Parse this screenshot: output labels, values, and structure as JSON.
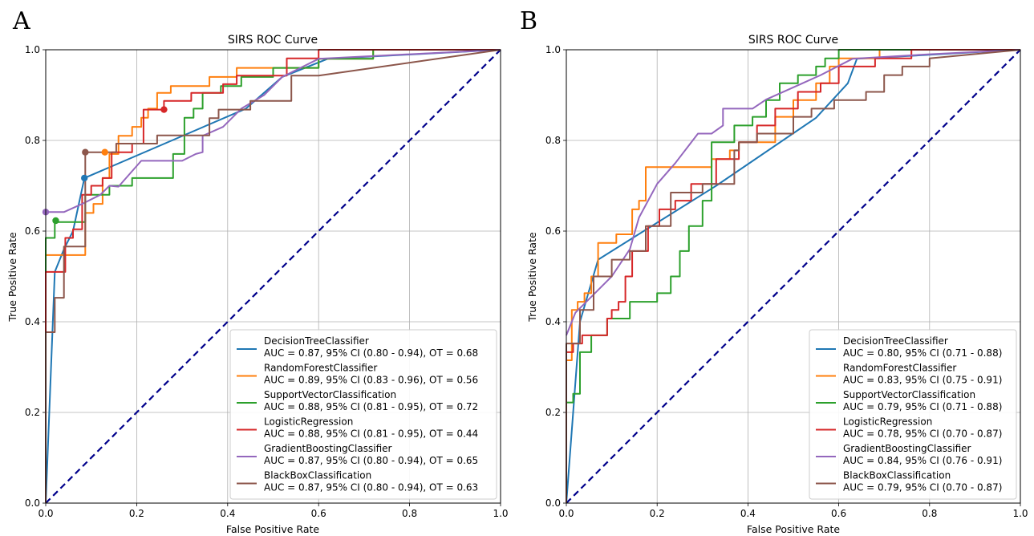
{
  "charts": [
    {
      "panel_label": "A",
      "title": "SIRS ROC Curve",
      "xlabel": "False Positive Rate",
      "ylabel": "True Positive Rate"
    },
    {
      "panel_label": "B",
      "title": "SIRS ROC Curve",
      "xlabel": "False Positive Rate",
      "ylabel": "True Positive Rate"
    }
  ],
  "chart_data": [
    {
      "type": "line",
      "panel": "A",
      "title": "SIRS ROC Curve",
      "xlabel": "False Positive Rate",
      "ylabel": "True Positive Rate",
      "xlim": [
        0,
        1
      ],
      "ylim": [
        0,
        1
      ],
      "xticks": [
        "0.0",
        "0.2",
        "0.4",
        "0.6",
        "0.8",
        "1.0"
      ],
      "yticks": [
        "0.0",
        "0.2",
        "0.4",
        "0.6",
        "0.8",
        "1.0"
      ],
      "grid": true,
      "legend_position": "bottom-right",
      "diagonal": {
        "x": [
          0,
          1
        ],
        "y": [
          0,
          1
        ],
        "color": "#00008b"
      },
      "series": [
        {
          "name": "DecisionTreeClassifier",
          "color": "#1f77b4",
          "stats": "AUC = 0.87, 95% CI (0.80 - 0.94), OT = 0.68",
          "x": [
            0,
            0.02,
            0.04,
            0.06,
            0.085,
            0.44,
            0.52,
            0.62,
            1.0
          ],
          "y": [
            0,
            0.51,
            0.56,
            0.6,
            0.717,
            0.87,
            0.94,
            0.98,
            1.0
          ],
          "marker": {
            "x": 0.085,
            "y": 0.717
          }
        },
        {
          "name": "RandomForestClassifier",
          "color": "#ff7f0e",
          "stats": "AUC = 0.89, 95% CI (0.83 - 0.96), OT = 0.56",
          "x": [
            0,
            0,
            0.087,
            0.087,
            0.105,
            0.105,
            0.125,
            0.125,
            0.14,
            0.14,
            0.16,
            0.16,
            0.19,
            0.19,
            0.21,
            0.21,
            0.225,
            0.225,
            0.245,
            0.245,
            0.275,
            0.275,
            0.36,
            0.36,
            0.42,
            0.42,
            0.6,
            0.6,
            0.72,
            0.72,
            1.0
          ],
          "y": [
            0,
            0.547,
            0.547,
            0.64,
            0.64,
            0.66,
            0.66,
            0.717,
            0.717,
            0.77,
            0.77,
            0.81,
            0.81,
            0.83,
            0.83,
            0.85,
            0.85,
            0.87,
            0.87,
            0.905,
            0.905,
            0.92,
            0.92,
            0.94,
            0.94,
            0.96,
            0.96,
            0.98,
            0.98,
            1.0,
            1.0
          ],
          "marker": {
            "x": 0.13,
            "y": 0.774
          }
        },
        {
          "name": "SupportVectorClassification",
          "color": "#2ca02c",
          "stats": "AUC = 0.88, 95% CI (0.81 - 0.95), OT = 0.72",
          "x": [
            0,
            0,
            0.02,
            0.02,
            0.087,
            0.087,
            0.14,
            0.14,
            0.19,
            0.19,
            0.28,
            0.28,
            0.305,
            0.305,
            0.325,
            0.325,
            0.345,
            0.345,
            0.385,
            0.385,
            0.43,
            0.43,
            0.5,
            0.5,
            0.6,
            0.6,
            0.72,
            0.72,
            1.0
          ],
          "y": [
            0,
            0.585,
            0.585,
            0.62,
            0.62,
            0.68,
            0.68,
            0.7,
            0.7,
            0.717,
            0.717,
            0.77,
            0.77,
            0.85,
            0.85,
            0.87,
            0.87,
            0.905,
            0.905,
            0.92,
            0.92,
            0.94,
            0.94,
            0.96,
            0.96,
            0.98,
            0.98,
            1.0,
            1.0
          ],
          "marker": {
            "x": 0.022,
            "y": 0.623
          }
        },
        {
          "name": "LogisticRegression",
          "color": "#d62728",
          "stats": "AUC = 0.88, 95% CI (0.81 - 0.95), OT = 0.44",
          "x": [
            0,
            0,
            0.043,
            0.043,
            0.06,
            0.06,
            0.08,
            0.08,
            0.1,
            0.1,
            0.125,
            0.125,
            0.145,
            0.145,
            0.19,
            0.19,
            0.215,
            0.215,
            0.26,
            0.26,
            0.32,
            0.32,
            0.39,
            0.39,
            0.42,
            0.42,
            0.53,
            0.53,
            0.6,
            0.6,
            1.0
          ],
          "y": [
            0,
            0.51,
            0.51,
            0.585,
            0.585,
            0.604,
            0.604,
            0.68,
            0.68,
            0.7,
            0.7,
            0.717,
            0.717,
            0.774,
            0.774,
            0.793,
            0.793,
            0.868,
            0.868,
            0.887,
            0.887,
            0.905,
            0.905,
            0.924,
            0.924,
            0.943,
            0.943,
            0.981,
            0.981,
            1.0,
            1.0
          ],
          "marker": {
            "x": 0.26,
            "y": 0.868
          }
        },
        {
          "name": "GradientBoostingClassifier",
          "color": "#9467bd",
          "stats": "AUC = 0.87, 95% CI (0.80 - 0.94), OT = 0.65",
          "x": [
            0,
            0.04,
            0.08,
            0.12,
            0.14,
            0.16,
            0.21,
            0.3,
            0.33,
            0.345,
            0.345,
            0.39,
            0.43,
            0.48,
            0.52,
            0.6,
            0.8,
            1.0
          ],
          "y": [
            0.642,
            0.642,
            0.66,
            0.68,
            0.7,
            0.698,
            0.755,
            0.755,
            0.77,
            0.774,
            0.81,
            0.83,
            0.87,
            0.9,
            0.94,
            0.98,
            0.99,
            1.0
          ],
          "marker": {
            "x": 0,
            "y": 0.642
          }
        },
        {
          "name": "BlackBoxClassification",
          "color": "#8c564b",
          "stats": "AUC = 0.87, 95% CI (0.80 - 0.94), OT = 0.63",
          "x": [
            0,
            0,
            0.02,
            0.02,
            0.04,
            0.04,
            0.087,
            0.087,
            0.155,
            0.155,
            0.245,
            0.245,
            0.36,
            0.36,
            0.38,
            0.38,
            0.45,
            0.45,
            0.54,
            0.54,
            0.6,
            0.6,
            1.0
          ],
          "y": [
            0,
            0.377,
            0.377,
            0.453,
            0.453,
            0.566,
            0.566,
            0.774,
            0.774,
            0.793,
            0.793,
            0.811,
            0.811,
            0.849,
            0.849,
            0.868,
            0.868,
            0.887,
            0.887,
            0.943,
            0.943,
            0.943,
            1.0
          ],
          "marker": {
            "x": 0.087,
            "y": 0.774
          }
        }
      ]
    },
    {
      "type": "line",
      "panel": "B",
      "title": "SIRS ROC Curve",
      "xlabel": "False Positive Rate",
      "ylabel": "True Positive Rate",
      "xlim": [
        0,
        1
      ],
      "ylim": [
        0,
        1
      ],
      "xticks": [
        "0.0",
        "0.2",
        "0.4",
        "0.6",
        "0.8",
        "1.0"
      ],
      "yticks": [
        "0.0",
        "0.2",
        "0.4",
        "0.6",
        "0.8",
        "1.0"
      ],
      "grid": true,
      "legend_position": "bottom-right",
      "diagonal": {
        "x": [
          0,
          1
        ],
        "y": [
          0,
          1
        ],
        "color": "#00008b"
      },
      "series": [
        {
          "name": "DecisionTreeClassifier",
          "color": "#1f77b4",
          "stats": "AUC = 0.80, 95% CI (0.71 - 0.88)",
          "x": [
            0,
            0.03,
            0.07,
            0.33,
            0.55,
            0.62,
            0.64,
            1.0
          ],
          "y": [
            0,
            0.4,
            0.537,
            0.7,
            0.85,
            0.926,
            0.98,
            1.0
          ]
        },
        {
          "name": "RandomForestClassifier",
          "color": "#ff7f0e",
          "stats": "AUC = 0.83, 95% CI (0.75 - 0.91)",
          "x": [
            0,
            0,
            0.012,
            0.012,
            0.025,
            0.025,
            0.04,
            0.04,
            0.055,
            0.055,
            0.07,
            0.07,
            0.11,
            0.11,
            0.145,
            0.145,
            0.16,
            0.16,
            0.175,
            0.175,
            0.32,
            0.32,
            0.36,
            0.36,
            0.38,
            0.38,
            0.46,
            0.46,
            0.5,
            0.5,
            0.55,
            0.55,
            0.58,
            0.58,
            0.6,
            0.6,
            0.69,
            0.69,
            1.0
          ],
          "y": [
            0,
            0.315,
            0.315,
            0.426,
            0.426,
            0.444,
            0.444,
            0.463,
            0.463,
            0.5,
            0.5,
            0.574,
            0.574,
            0.593,
            0.593,
            0.648,
            0.648,
            0.667,
            0.667,
            0.741,
            0.741,
            0.759,
            0.759,
            0.778,
            0.778,
            0.796,
            0.796,
            0.852,
            0.852,
            0.889,
            0.889,
            0.926,
            0.926,
            0.963,
            0.963,
            0.981,
            0.981,
            1.0,
            1.0
          ]
        },
        {
          "name": "SupportVectorClassification",
          "color": "#2ca02c",
          "stats": "AUC = 0.79, 95% CI (0.71 - 0.88)",
          "x": [
            0,
            0,
            0.015,
            0.015,
            0.03,
            0.03,
            0.055,
            0.055,
            0.09,
            0.09,
            0.14,
            0.14,
            0.2,
            0.2,
            0.23,
            0.23,
            0.25,
            0.25,
            0.27,
            0.27,
            0.3,
            0.3,
            0.32,
            0.32,
            0.37,
            0.37,
            0.41,
            0.41,
            0.44,
            0.44,
            0.47,
            0.47,
            0.51,
            0.51,
            0.55,
            0.55,
            0.57,
            0.57,
            0.6,
            0.6,
            1.0
          ],
          "y": [
            0,
            0.222,
            0.222,
            0.241,
            0.241,
            0.333,
            0.333,
            0.37,
            0.37,
            0.407,
            0.407,
            0.444,
            0.444,
            0.463,
            0.463,
            0.5,
            0.5,
            0.556,
            0.556,
            0.611,
            0.611,
            0.667,
            0.667,
            0.796,
            0.796,
            0.833,
            0.833,
            0.852,
            0.852,
            0.889,
            0.889,
            0.926,
            0.926,
            0.944,
            0.944,
            0.963,
            0.963,
            0.981,
            0.981,
            1.0,
            1.0
          ]
        },
        {
          "name": "LogisticRegression",
          "color": "#d62728",
          "stats": "AUC = 0.78, 95% CI (0.70 - 0.87)",
          "x": [
            0,
            0,
            0.015,
            0.015,
            0.035,
            0.035,
            0.09,
            0.09,
            0.1,
            0.1,
            0.115,
            0.115,
            0.13,
            0.13,
            0.145,
            0.145,
            0.18,
            0.18,
            0.205,
            0.205,
            0.24,
            0.24,
            0.275,
            0.275,
            0.33,
            0.33,
            0.38,
            0.38,
            0.42,
            0.42,
            0.46,
            0.46,
            0.51,
            0.51,
            0.56,
            0.56,
            0.6,
            0.6,
            0.68,
            0.68,
            0.76,
            0.76,
            1.0
          ],
          "y": [
            0,
            0.333,
            0.333,
            0.352,
            0.352,
            0.37,
            0.37,
            0.407,
            0.407,
            0.426,
            0.426,
            0.444,
            0.444,
            0.5,
            0.5,
            0.556,
            0.556,
            0.611,
            0.611,
            0.648,
            0.648,
            0.667,
            0.667,
            0.704,
            0.704,
            0.759,
            0.759,
            0.796,
            0.796,
            0.833,
            0.833,
            0.87,
            0.87,
            0.907,
            0.907,
            0.926,
            0.926,
            0.963,
            0.963,
            0.981,
            0.981,
            1.0,
            1.0
          ]
        },
        {
          "name": "GradientBoostingClassifier",
          "color": "#9467bd",
          "stats": "AUC = 0.84, 95% CI (0.76 - 0.91)",
          "x": [
            0,
            0.02,
            0.06,
            0.1,
            0.14,
            0.16,
            0.2,
            0.24,
            0.29,
            0.32,
            0.345,
            0.345,
            0.41,
            0.44,
            0.52,
            0.56,
            0.63,
            0.8,
            1.0
          ],
          "y": [
            0.37,
            0.42,
            0.46,
            0.5,
            0.56,
            0.63,
            0.704,
            0.75,
            0.815,
            0.815,
            0.833,
            0.87,
            0.87,
            0.89,
            0.926,
            0.944,
            0.98,
            0.99,
            1.0
          ]
        },
        {
          "name": "BlackBoxClassification",
          "color": "#8c564b",
          "stats": "AUC = 0.79, 95% CI (0.70 - 0.87)",
          "x": [
            0,
            0,
            0.03,
            0.03,
            0.06,
            0.06,
            0.1,
            0.1,
            0.14,
            0.14,
            0.175,
            0.175,
            0.23,
            0.23,
            0.3,
            0.3,
            0.37,
            0.37,
            0.38,
            0.38,
            0.42,
            0.42,
            0.5,
            0.5,
            0.54,
            0.54,
            0.59,
            0.59,
            0.66,
            0.66,
            0.7,
            0.7,
            0.74,
            0.74,
            0.8,
            0.8,
            1.0
          ],
          "y": [
            0,
            0.352,
            0.352,
            0.426,
            0.426,
            0.5,
            0.5,
            0.537,
            0.537,
            0.556,
            0.556,
            0.611,
            0.611,
            0.685,
            0.685,
            0.704,
            0.704,
            0.778,
            0.778,
            0.796,
            0.796,
            0.815,
            0.815,
            0.852,
            0.852,
            0.87,
            0.87,
            0.889,
            0.889,
            0.907,
            0.907,
            0.944,
            0.944,
            0.963,
            0.963,
            0.981,
            1.0
          ]
        }
      ]
    }
  ]
}
